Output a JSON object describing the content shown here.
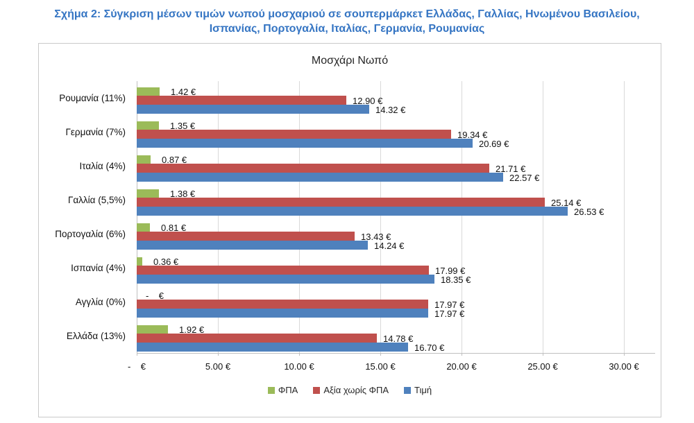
{
  "caption": "Σχήμα 2: Σύγκριση μέσων τιμών νωπού μοσχαριού σε σουπερμάρκετ Ελλάδας, Γαλλίας, Ηνωμένου Βασιλείου, Ισπανίας, Πορτογαλία, Ιταλίας, Γερμανία, Ρουμανίας",
  "chart_data": {
    "type": "bar",
    "orientation": "horizontal",
    "title": "Μοσχάρι Νωπό",
    "categories": [
      "Ρουμανία (11%)",
      "Γερμανία (7%)",
      "Ιταλία (4%)",
      "Γαλλία (5,5%)",
      "Πορτογαλία (6%)",
      "Ισπανία (4%)",
      "Αγγλία (0%)",
      "Ελλάδα (13%)"
    ],
    "series": [
      {
        "name": "ΦΠΑ",
        "color": "#9BBB59",
        "values": [
          1.42,
          1.35,
          0.87,
          1.38,
          0.81,
          0.36,
          0,
          1.92
        ],
        "labels": [
          "1.42 €",
          "1.35 €",
          "0.87 €",
          "1.38 €",
          "0.81 €",
          "0.36 €",
          "-    €",
          "1.92 €"
        ]
      },
      {
        "name": "Αξία χωρίς ΦΠΑ",
        "color": "#C0504D",
        "values": [
          12.9,
          19.34,
          21.71,
          25.14,
          13.43,
          17.99,
          17.97,
          14.78
        ],
        "labels": [
          "12.90 €",
          "19.34 €",
          "21.71 €",
          "25.14 €",
          "13.43 €",
          "17.99 €",
          "17.97 €",
          "14.78 €"
        ]
      },
      {
        "name": "Τιμή",
        "color": "#4F81BD",
        "values": [
          14.32,
          20.69,
          22.57,
          26.53,
          14.24,
          18.35,
          17.97,
          16.7
        ],
        "labels": [
          "14.32 €",
          "20.69 €",
          "22.57 €",
          "26.53 €",
          "14.24 €",
          "18.35 €",
          "17.97 €",
          "16.70 €"
        ]
      }
    ],
    "x_axis": {
      "tick_values": [
        0,
        5,
        10,
        15,
        20,
        25,
        30
      ],
      "ticks": [
        "-    €",
        "5.00 €",
        "10.00 €",
        "15.00 €",
        "20.00 €",
        "25.00 €",
        "30.00 €"
      ],
      "range": [
        0,
        30
      ]
    },
    "legend": [
      "ΦΠΑ",
      "Αξία χωρίς ΦΠΑ",
      "Τιμή"
    ],
    "legend_position": "bottom",
    "grid": true
  },
  "colors": {
    "caption_blue": "#3575C3",
    "series_vat": "#9BBB59",
    "series_net": "#C0504D",
    "series_price": "#4F81BD",
    "gridline": "#D9D9D9",
    "axis": "#BFBFBF",
    "border": "#C9C9C9"
  }
}
